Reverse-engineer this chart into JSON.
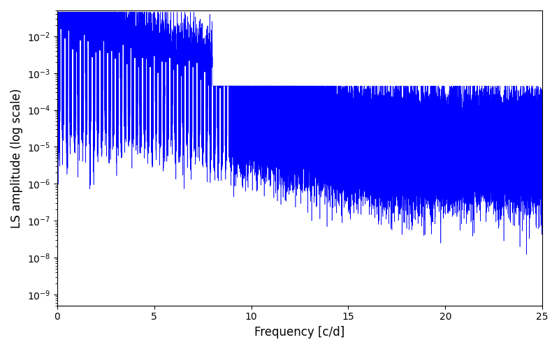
{
  "title": "",
  "xlabel": "Frequency [c/d]",
  "ylabel": "LS amplitude (log scale)",
  "xlim": [
    0,
    25
  ],
  "ylim": [
    5e-10,
    0.05
  ],
  "color": "#0000ff",
  "linewidth": 0.4,
  "figsize": [
    8.0,
    5.0
  ],
  "dpi": 100,
  "n_points": 100000,
  "seed": 123,
  "base_floor": 3e-05,
  "low_freq_peak": 0.03,
  "decay_rate": 0.35
}
